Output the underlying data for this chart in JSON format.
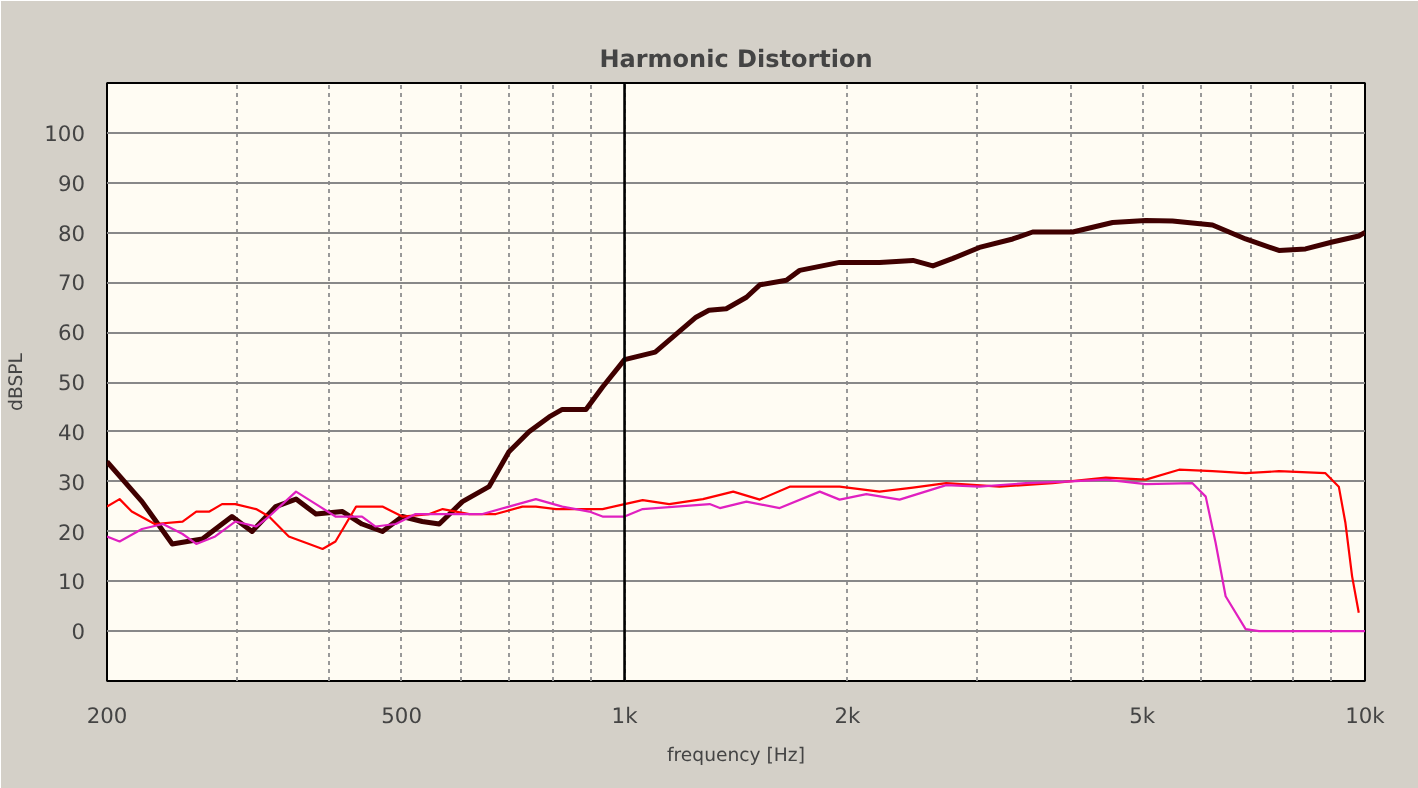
{
  "chart_data": {
    "type": "line",
    "title": "Harmonic Distortion",
    "xlabel": "frequency [Hz]",
    "ylabel": "dBSPL",
    "log": "x",
    "grid": true,
    "line_style": "solid",
    "marker": "none",
    "xlim": [
      200,
      10000
    ],
    "ylim": [
      -10,
      110
    ],
    "xticks": [
      200,
      {
        "value": 300,
        "label": null
      },
      {
        "value": 400,
        "label": null
      },
      500,
      {
        "value": 600,
        "label": null
      },
      {
        "value": 700,
        "label": null
      },
      {
        "value": 800,
        "label": null
      },
      {
        "value": 900,
        "label": null
      },
      {
        "value": 1000,
        "label": "1k"
      },
      {
        "value": 2000,
        "label": "2k"
      },
      {
        "value": 3000,
        "label": null
      },
      {
        "value": 4000,
        "label": null
      },
      {
        "value": 5000,
        "label": "5k"
      },
      {
        "value": 6000,
        "label": null
      },
      {
        "value": 7000,
        "label": null
      },
      {
        "value": 8000,
        "label": null
      },
      {
        "value": 9000,
        "label": null
      },
      {
        "value": 10000,
        "label": "10k"
      }
    ],
    "yticks": [
      0,
      10,
      20,
      30,
      40,
      50,
      60,
      70,
      80,
      90,
      100
    ],
    "ref_lines": [
      {
        "axis": "x",
        "value": 1000,
        "color": "#000000"
      }
    ],
    "series": [
      {
        "color": "#400000",
        "x": [
          200,
          223,
          245,
          269,
          295,
          314,
          338,
          360,
          383,
          416,
          442,
          471,
          501,
          533,
          562,
          604,
          656,
          698,
          743,
          791,
          824,
          887,
          934,
          1000,
          1100,
          1249,
          1300,
          1372,
          1461,
          1523,
          1654,
          1724,
          1952,
          2210,
          2452,
          2609,
          2776,
          3015,
          3344,
          3558,
          4030,
          4562,
          5057,
          5495,
          6223,
          6899,
          7651,
          8311,
          9033,
          9808,
          10000
        ],
        "values": [
          34,
          26,
          17.5,
          18.5,
          23,
          20,
          25,
          26.5,
          23.5,
          24,
          21.5,
          20,
          23,
          22,
          21.5,
          26,
          29,
          36,
          40,
          43,
          44.5,
          44.5,
          49,
          54.5,
          56,
          63,
          64.4,
          64.7,
          67,
          69.5,
          70.4,
          72.4,
          74,
          74,
          74.4,
          73.3,
          74.8,
          77,
          78.7,
          80.1,
          80.1,
          82,
          82.4,
          82.3,
          81.5,
          78.7,
          76.4,
          76.7,
          78.1,
          79.3,
          80
        ]
      },
      {
        "color": "#ff0000",
        "x": [
          200,
          208,
          216,
          232,
          253,
          264,
          275,
          286,
          298,
          318,
          331,
          352,
          375,
          391,
          407,
          434,
          471,
          501,
          545,
          568,
          617,
          670,
          728,
          759,
          808,
          877,
          934,
          1000,
          1058,
          1149,
          1276,
          1402,
          1523,
          1671,
          1952,
          2210,
          2452,
          2719,
          3209,
          3786,
          4467,
          5057,
          5610,
          6223,
          6899,
          7651,
          8843,
          9218,
          9410,
          9607,
          9808
        ],
        "values": [
          25,
          26.5,
          24,
          21.5,
          22,
          24,
          24,
          25.5,
          25.5,
          24.5,
          23,
          19,
          17.5,
          16.5,
          18,
          25,
          25,
          23,
          23.5,
          24.5,
          23.5,
          23.5,
          25,
          25,
          24.5,
          24.5,
          24.5,
          25.5,
          26.3,
          25.5,
          26.5,
          28,
          26.4,
          29,
          29,
          28,
          28.8,
          29.7,
          29,
          29.7,
          30.8,
          30.4,
          32.4,
          32.1,
          31.7,
          32.1,
          31.7,
          29,
          21.7,
          11,
          3.7
        ]
      },
      {
        "color": "#e020c0",
        "x": [
          200,
          208,
          223,
          238,
          253,
          264,
          280,
          298,
          318,
          331,
          360,
          383,
          407,
          442,
          461,
          491,
          522,
          592,
          643,
          698,
          759,
          824,
          896,
          934,
          1000,
          1058,
          1173,
          1303,
          1345,
          1461,
          1620,
          1835,
          1952,
          2121,
          2352,
          2719,
          3015,
          3484,
          3945,
          4467,
          5057,
          5848,
          6094,
          6285,
          6483,
          6899,
          7192,
          10000
        ],
        "values": [
          19,
          18,
          20.5,
          21.5,
          19.5,
          17.5,
          19,
          22,
          21,
          23,
          28,
          25.5,
          23,
          23,
          21,
          21.5,
          23.5,
          23.5,
          23.5,
          25,
          26.5,
          25,
          24,
          23,
          23,
          24.5,
          25,
          25.5,
          24.7,
          26,
          24.7,
          28,
          26.4,
          27.5,
          26.4,
          29.3,
          29,
          29.7,
          30,
          30.4,
          29.5,
          29.7,
          27,
          17.7,
          7,
          0.4,
          0,
          0
        ]
      }
    ]
  }
}
